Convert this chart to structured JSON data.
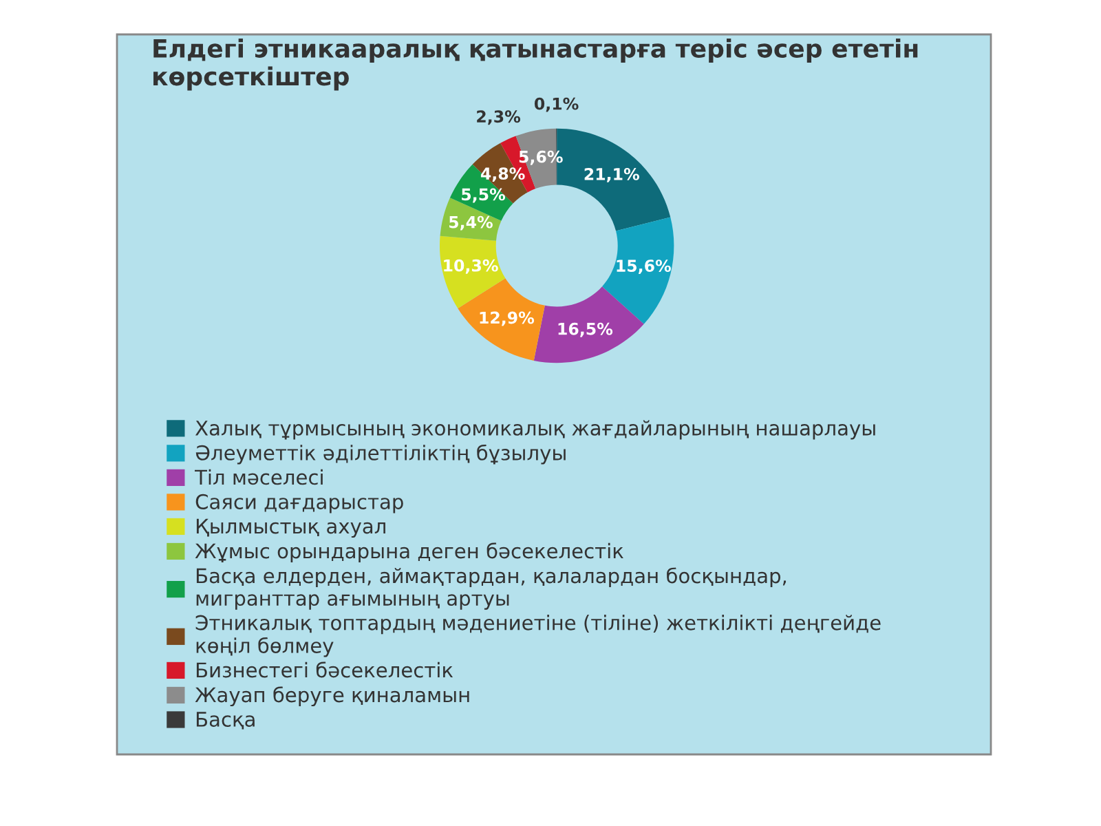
{
  "chart_data": {
    "type": "donut",
    "title": "Елдегі этникааралық қатынастарға теріс әсер ететін\nкөрсеткіштер",
    "categories": [
      "Халық тұрмысының экономикалық жағдайларының нашарлауы",
      "Әлеуметтік әділеттіліктің бұзылуы",
      "Тіл мәселесі",
      "Саяси дағдарыстар",
      "Қылмыстық ахуал",
      "Жұмыс орындарына деген бәсекелестік",
      "Басқа елдерден, аймақтардан, қалалардан босқындар,\nмигранттар ағымының артуы",
      "Этникалық топтардың мәдениетіне (тіліне) жеткілікті деңгейде\nкөңіл бөлмеу",
      "Бизнестегі бәсекелестік",
      "Жауап беруге қиналамын",
      "Басқа"
    ],
    "values": [
      21.1,
      15.6,
      16.5,
      12.9,
      10.3,
      5.4,
      5.5,
      4.8,
      2.3,
      5.6,
      0.1
    ],
    "value_labels": [
      "21,1%",
      "15,6%",
      "16,5%",
      "12,9%",
      "10,3%",
      "5,4%",
      "5,5%",
      "4,8%",
      "2,3%",
      "5,6%",
      "0,1%"
    ],
    "colors": [
      "#0e6b7a",
      "#12a3c0",
      "#a03fa8",
      "#f7941d",
      "#d6e020",
      "#8dc63f",
      "#12a04a",
      "#7a4a1e",
      "#d7182a",
      "#8c8c8c",
      "#3a3a3a"
    ],
    "legend": "bottom"
  }
}
